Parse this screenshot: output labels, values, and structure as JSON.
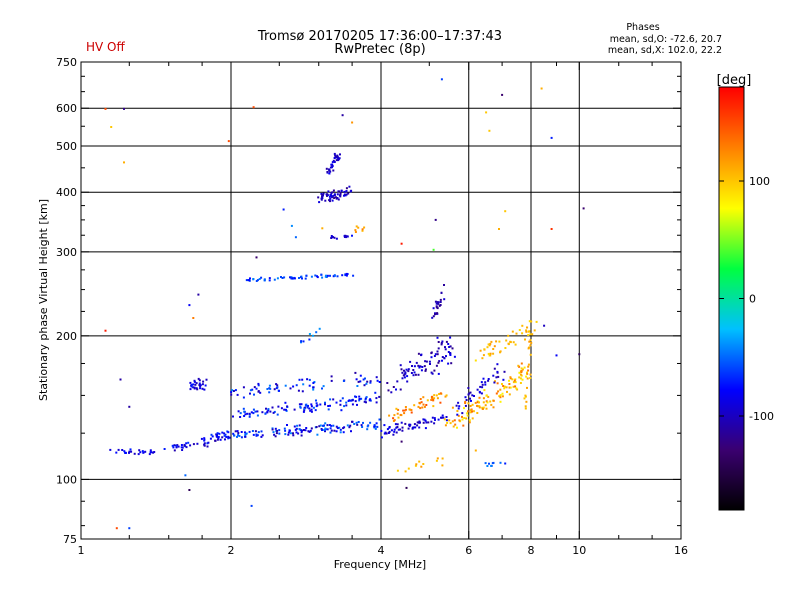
{
  "chart_data": {
    "type": "scatter",
    "title": "Tromsø 20170205 17:36:00–17:37:43",
    "subtitle": "RwPretec (8p)",
    "status": "HV Off",
    "stats": {
      "heading": "Phases",
      "line_o": "mean, sd,O: -72.6, 20.7",
      "line_x": "mean, sd,X: 102.0, 22.2"
    },
    "xlabel": "Frequency [MHz]",
    "ylabel": "Stationary phase Virtual Height [km]",
    "x_scale": "log",
    "y_scale": "log",
    "xlim": [
      1,
      16
    ],
    "ylim": [
      75,
      750
    ],
    "x_ticks": [
      1,
      2,
      4,
      6,
      8,
      10,
      16
    ],
    "x_grid": [
      2,
      4,
      6,
      8,
      10
    ],
    "y_ticks": [
      75,
      100,
      200,
      300,
      400,
      500,
      600,
      750
    ],
    "y_grid": [
      100,
      200,
      300,
      400,
      500,
      600
    ],
    "grid": true,
    "colorbar": {
      "label": "[deg]",
      "range": [
        -180,
        180
      ],
      "ticks": [
        -100,
        0,
        100
      ],
      "stops": [
        "#000000",
        "#3a0070",
        "#0000ff",
        "#00c0ff",
        "#00ff40",
        "#ffff00",
        "#ff8000",
        "#ff0000"
      ]
    },
    "colors": {
      "status": "#cc0000",
      "grid": "#000000"
    },
    "clusters": [
      {
        "x": [
          1.15,
          1.5
        ],
        "y": [
          114,
          114
        ],
        "dx": 0.04,
        "dy": 0.025,
        "n": 26,
        "phase": [
          -100,
          -70
        ]
      },
      {
        "x": [
          1.5,
          2.0
        ],
        "y": [
          116,
          124
        ],
        "dx": 0.05,
        "dy": 0.035,
        "n": 60,
        "phase": [
          -110,
          -60
        ]
      },
      {
        "x": [
          2.0,
          4.0
        ],
        "y": [
          124,
          130
        ],
        "dx": 0.04,
        "dy": 0.035,
        "n": 130,
        "phase": [
          -110,
          -40
        ]
      },
      {
        "x": [
          2.0,
          4.0
        ],
        "y": [
          136,
          148
        ],
        "dx": 0.04,
        "dy": 0.04,
        "n": 110,
        "phase": [
          -100,
          -50
        ]
      },
      {
        "x": [
          2.0,
          4.0
        ],
        "y": [
          152,
          162
        ],
        "dx": 0.05,
        "dy": 0.05,
        "n": 70,
        "phase": [
          -110,
          -40
        ]
      },
      {
        "x": [
          1.65,
          1.78
        ],
        "y": [
          158,
          158
        ],
        "dx": 0.03,
        "dy": 0.04,
        "n": 28,
        "phase": [
          -110,
          -70
        ]
      },
      {
        "x": [
          3.0,
          3.45
        ],
        "y": [
          390,
          400
        ],
        "dx": 0.03,
        "dy": 0.04,
        "n": 60,
        "phase": [
          -120,
          -80
        ]
      },
      {
        "x": [
          3.15,
          3.3
        ],
        "y": [
          440,
          490
        ],
        "dx": 0.02,
        "dy": 0.04,
        "n": 35,
        "phase": [
          -110,
          -80
        ]
      },
      {
        "x": [
          2.15,
          3.5
        ],
        "y": [
          262,
          268
        ],
        "dx": 0.02,
        "dy": 0.015,
        "n": 60,
        "phase": [
          -80,
          -40
        ]
      },
      {
        "x": [
          3.15,
          3.5
        ],
        "y": [
          320,
          325
        ],
        "dx": 0.02,
        "dy": 0.015,
        "n": 14,
        "phase": [
          -110,
          -70
        ]
      },
      {
        "x": [
          4.0,
          5.4
        ],
        "y": [
          125,
          135
        ],
        "dx": 0.04,
        "dy": 0.04,
        "n": 60,
        "phase": [
          -110,
          -80
        ]
      },
      {
        "x": [
          4.2,
          5.6
        ],
        "y": [
          160,
          190
        ],
        "dx": 0.05,
        "dy": 0.09,
        "n": 90,
        "phase": [
          -120,
          -80
        ]
      },
      {
        "x": [
          5.1,
          5.4
        ],
        "y": [
          220,
          250
        ],
        "dx": 0.02,
        "dy": 0.05,
        "n": 24,
        "phase": [
          -120,
          -90
        ]
      },
      {
        "x": [
          4.2,
          5.4
        ],
        "y": [
          135,
          150
        ],
        "dx": 0.04,
        "dy": 0.05,
        "n": 50,
        "phase": [
          100,
          150
        ]
      },
      {
        "x": [
          5.5,
          8.0
        ],
        "y": [
          130,
          170
        ],
        "dx": 0.05,
        "dy": 0.08,
        "n": 120,
        "phase": [
          80,
          140
        ]
      },
      {
        "x": [
          6.2,
          8.2
        ],
        "y": [
          180,
          210
        ],
        "dx": 0.05,
        "dy": 0.06,
        "n": 50,
        "phase": [
          90,
          120
        ]
      },
      {
        "x": [
          5.6,
          7.0
        ],
        "y": [
          140,
          170
        ],
        "dx": 0.04,
        "dy": 0.06,
        "n": 40,
        "phase": [
          -110,
          -80
        ]
      },
      {
        "x": [
          7.8,
          8.0
        ],
        "y": [
          140,
          200
        ],
        "dx": 0.01,
        "dy": 0.05,
        "n": 18,
        "phase": [
          100,
          120
        ]
      },
      {
        "x": [
          4.3,
          5.3
        ],
        "y": [
          105,
          110
        ],
        "dx": 0.03,
        "dy": 0.03,
        "n": 12,
        "phase": [
          90,
          120
        ]
      },
      {
        "x": [
          6.5,
          7.0
        ],
        "y": [
          108,
          108
        ],
        "dx": 0.03,
        "dy": 0.02,
        "n": 8,
        "phase": [
          -60,
          -40
        ]
      },
      {
        "x": [
          2.75,
          3.0
        ],
        "y": [
          195,
          205
        ],
        "dx": 0.02,
        "dy": 0.03,
        "n": 8,
        "phase": [
          -70,
          -30
        ]
      },
      {
        "x": [
          3.5,
          3.7
        ],
        "y": [
          332,
          338
        ],
        "dx": 0.02,
        "dy": 0.02,
        "n": 7,
        "phase": [
          100,
          130
        ]
      }
    ],
    "outliers": [
      {
        "x": 1.12,
        "y": 598,
        "phase": 150
      },
      {
        "x": 1.15,
        "y": 548,
        "phase": 100
      },
      {
        "x": 1.22,
        "y": 598,
        "phase": -120
      },
      {
        "x": 1.22,
        "y": 462,
        "phase": 110
      },
      {
        "x": 1.12,
        "y": 205,
        "phase": 170
      },
      {
        "x": 1.2,
        "y": 162,
        "phase": -110
      },
      {
        "x": 1.25,
        "y": 142,
        "phase": -110
      },
      {
        "x": 1.18,
        "y": 79,
        "phase": 150
      },
      {
        "x": 1.25,
        "y": 79,
        "phase": -60
      },
      {
        "x": 1.62,
        "y": 102,
        "phase": -50
      },
      {
        "x": 1.65,
        "y": 95,
        "phase": -140
      },
      {
        "x": 1.65,
        "y": 232,
        "phase": -80
      },
      {
        "x": 1.72,
        "y": 244,
        "phase": -110
      },
      {
        "x": 1.68,
        "y": 218,
        "phase": 130
      },
      {
        "x": 1.98,
        "y": 512,
        "phase": 150
      },
      {
        "x": 2.22,
        "y": 603,
        "phase": 150
      },
      {
        "x": 2.2,
        "y": 88,
        "phase": -60
      },
      {
        "x": 2.25,
        "y": 292,
        "phase": -130
      },
      {
        "x": 2.55,
        "y": 368,
        "phase": -70
      },
      {
        "x": 2.65,
        "y": 340,
        "phase": -40
      },
      {
        "x": 2.7,
        "y": 322,
        "phase": -50
      },
      {
        "x": 3.05,
        "y": 336,
        "phase": 110
      },
      {
        "x": 3.35,
        "y": 580,
        "phase": -110
      },
      {
        "x": 3.5,
        "y": 560,
        "phase": 120
      },
      {
        "x": 4.4,
        "y": 312,
        "phase": 170
      },
      {
        "x": 4.5,
        "y": 96,
        "phase": -140
      },
      {
        "x": 5.15,
        "y": 350,
        "phase": -120
      },
      {
        "x": 5.3,
        "y": 690,
        "phase": -60
      },
      {
        "x": 5.1,
        "y": 303,
        "phase": 40
      },
      {
        "x": 6.5,
        "y": 588,
        "phase": 100
      },
      {
        "x": 6.6,
        "y": 538,
        "phase": 100
      },
      {
        "x": 7.0,
        "y": 640,
        "phase": -130
      },
      {
        "x": 7.1,
        "y": 365,
        "phase": 100
      },
      {
        "x": 6.9,
        "y": 335,
        "phase": 110
      },
      {
        "x": 8.4,
        "y": 660,
        "phase": 110
      },
      {
        "x": 8.8,
        "y": 520,
        "phase": -70
      },
      {
        "x": 8.8,
        "y": 335,
        "phase": 160
      },
      {
        "x": 10.2,
        "y": 370,
        "phase": -130
      },
      {
        "x": 9.0,
        "y": 182,
        "phase": -80
      },
      {
        "x": 10.0,
        "y": 183,
        "phase": -140
      },
      {
        "x": 8.5,
        "y": 210,
        "phase": -100
      },
      {
        "x": 7.1,
        "y": 108,
        "phase": -70
      },
      {
        "x": 4.4,
        "y": 120,
        "phase": -130
      },
      {
        "x": 6.2,
        "y": 115,
        "phase": 110
      }
    ]
  }
}
